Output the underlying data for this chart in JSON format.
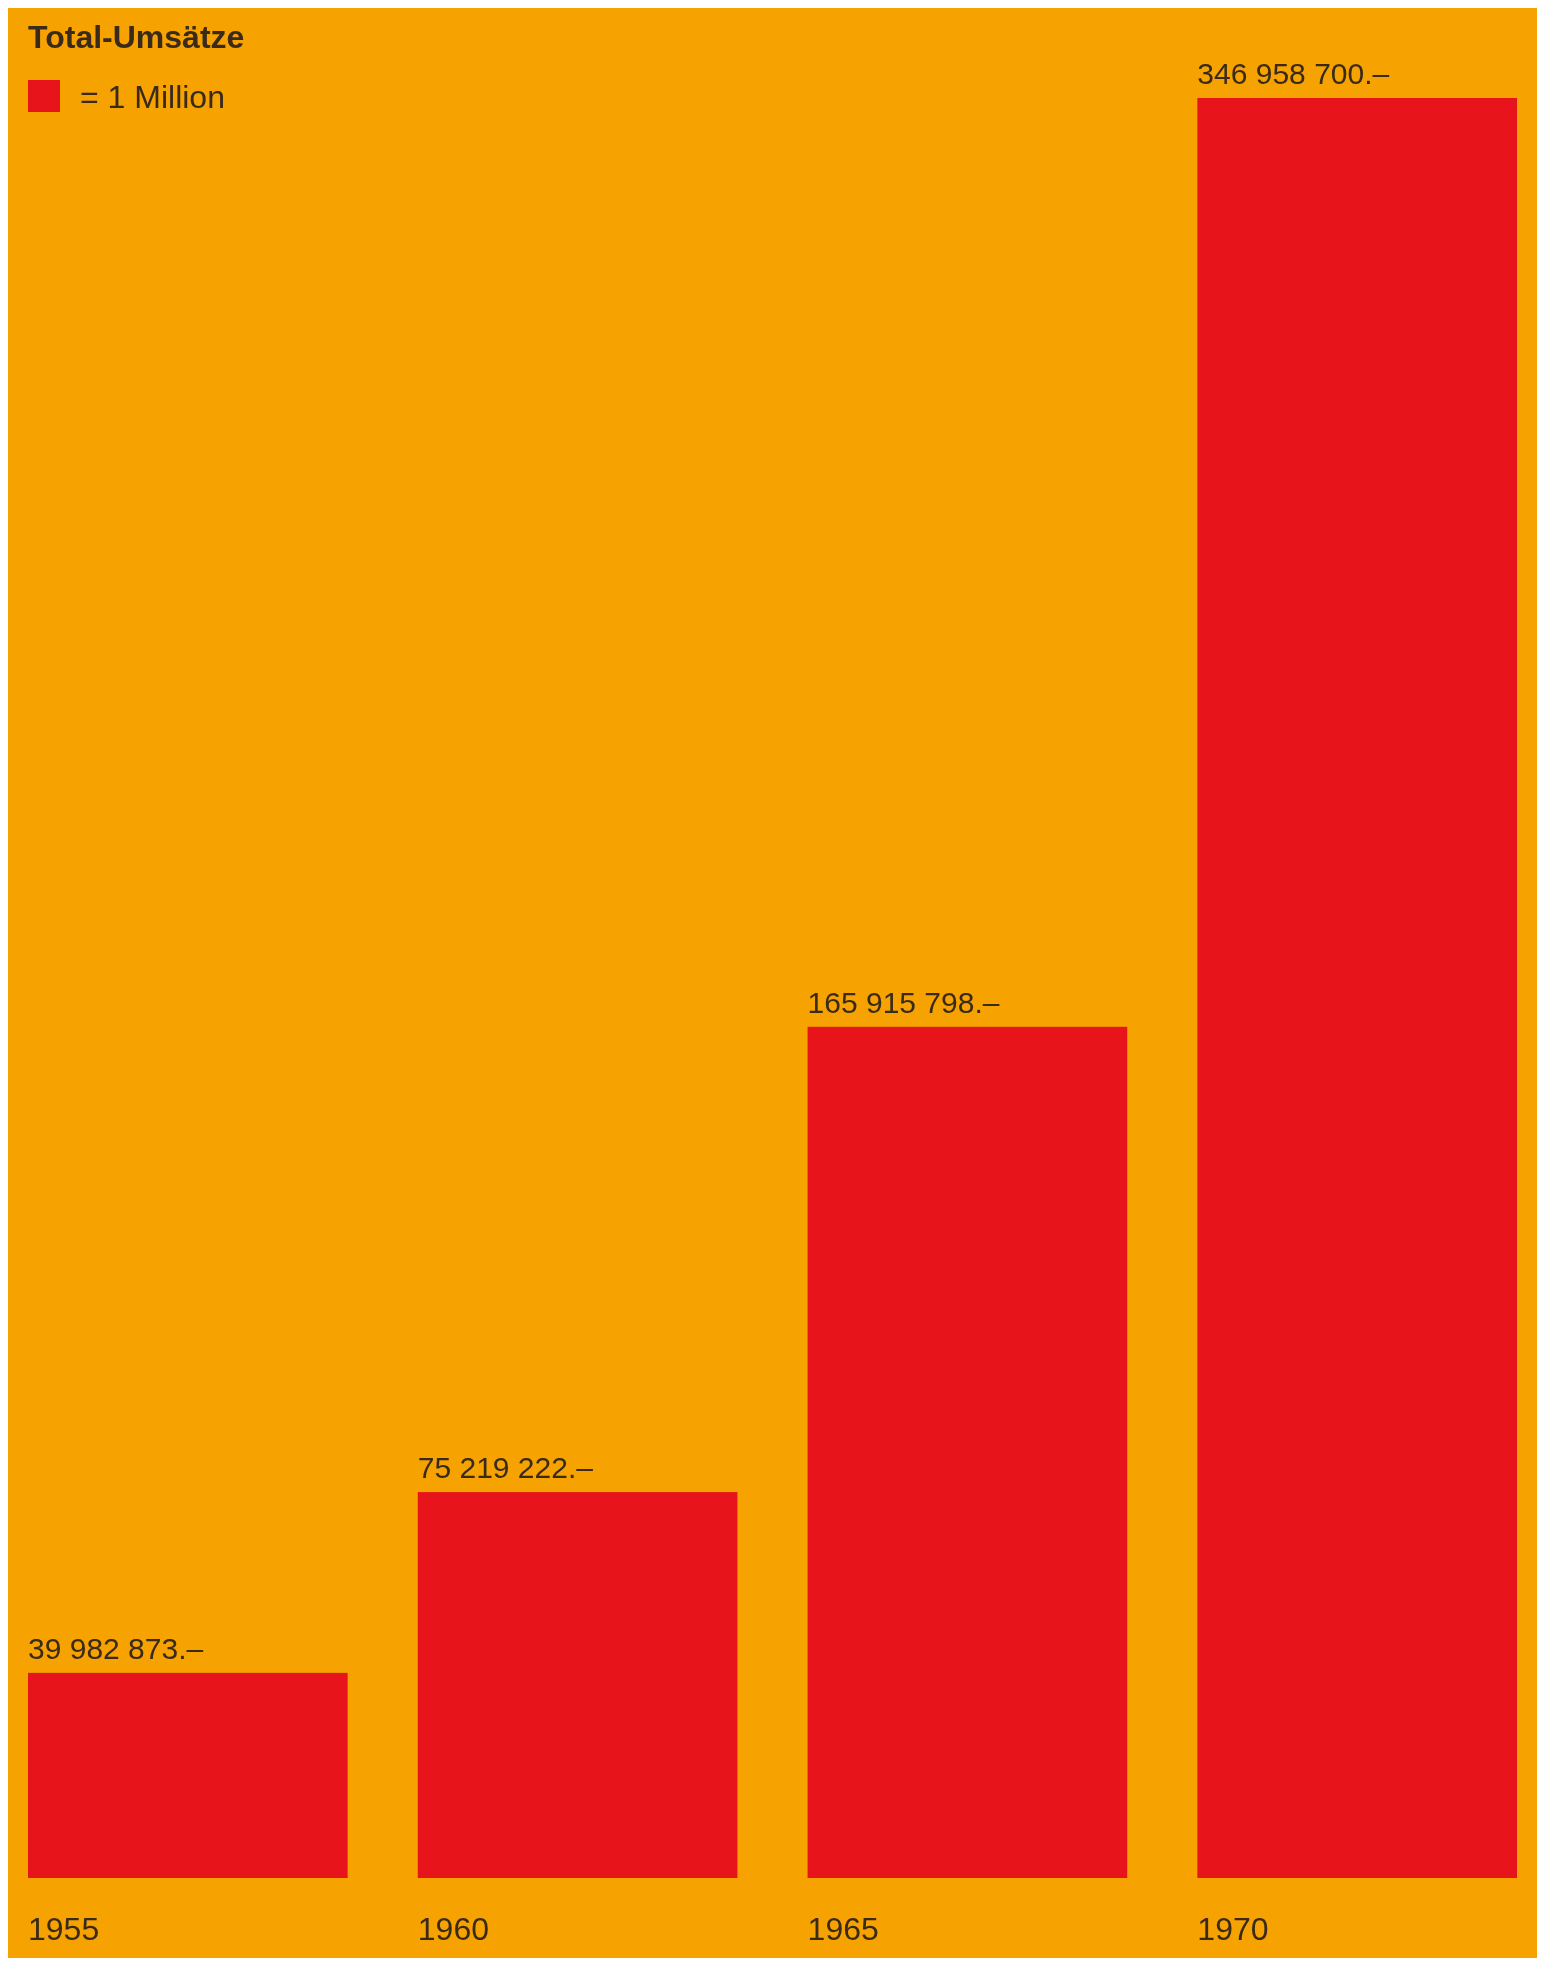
{
  "chart_data": {
    "type": "bar",
    "title": "Total-Umsätze",
    "annotations": [
      "= 1 Million"
    ],
    "categories": [
      "1955",
      "1960",
      "1965",
      "1970"
    ],
    "values": [
      39982873,
      75219222,
      165915798,
      346958700
    ],
    "value_labels": [
      "39 982 873.–",
      "75 219 222.–",
      "165 915 798.–",
      "346 958 700.–"
    ],
    "color": "#e8141c"
  }
}
